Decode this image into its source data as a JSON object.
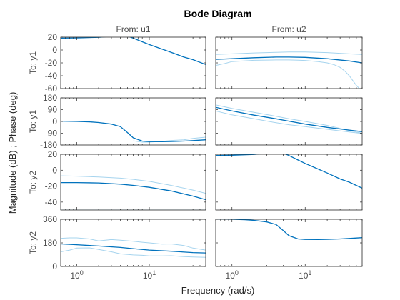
{
  "chart_data": {
    "type": "line",
    "title": "Bode Diagram",
    "xlabel": "Frequency  (rad/s)",
    "ylabel": "Magnitude (dB) ; Phase (deg)",
    "x_scale": "log",
    "xlim": [
      0.6,
      60
    ],
    "x_ticks": [
      1,
      10
    ],
    "x_tick_labels": [
      [
        "10",
        "0"
      ],
      [
        "10",
        "1"
      ]
    ],
    "col_labels": [
      "From: u1",
      "From: u2"
    ],
    "row_labels": [
      "To: y1",
      "To: y1",
      "To: y2",
      "To: y2"
    ],
    "row_kind": [
      "magnitude",
      "phase",
      "magnitude",
      "phase"
    ],
    "row_ylims": [
      [
        -60,
        20
      ],
      [
        -180,
        180
      ],
      [
        -50,
        20
      ],
      [
        0,
        360
      ]
    ],
    "row_yticks": [
      [
        20,
        0,
        -20,
        -40,
        -60
      ],
      [
        180,
        90,
        0,
        -90,
        -180
      ],
      [
        20,
        0,
        -20,
        -40
      ],
      [
        360,
        180,
        0
      ]
    ],
    "colors": {
      "nominal": "#0072bd",
      "bound": "#a6d4ee",
      "axis": "#262626",
      "tick_label": "#4d4d4d"
    },
    "panels": [
      {
        "row": 0,
        "col": 0,
        "series": [
          {
            "kind": "nominal",
            "x": [
              0.6,
              1,
              2,
              3,
              4,
              5,
              6,
              8,
              10,
              15,
              20,
              30,
              40,
              60
            ],
            "y": [
              18.5,
              18.8,
              19.8,
              21.3,
              22.2,
              21.5,
              18.5,
              12.8,
              8.5,
              1.5,
              -3.5,
              -11,
              -15,
              -22.5
            ]
          }
        ]
      },
      {
        "row": 0,
        "col": 1,
        "series": [
          {
            "kind": "bound",
            "x": [
              0.6,
              1,
              2,
              4,
              6,
              10,
              20,
              40,
              60
            ],
            "y": [
              -7,
              -6,
              -4.5,
              -3.5,
              -3,
              -3,
              -4,
              -6,
              -7
            ]
          },
          {
            "kind": "bound",
            "x": [
              0.6,
              0.8,
              1,
              2,
              4,
              6,
              8,
              10,
              15,
              20,
              25,
              30,
              35,
              40,
              45,
              50,
              55,
              60
            ],
            "y": [
              -24,
              -21,
              -18,
              -16,
              -15.5,
              -15.5,
              -15.8,
              -16.2,
              -18,
              -20,
              -23,
              -27,
              -33,
              -40,
              -48,
              -55,
              -60,
              -62
            ]
          },
          {
            "kind": "nominal",
            "x": [
              0.6,
              1,
              2,
              4,
              6,
              10,
              20,
              40,
              60
            ],
            "y": [
              -14.5,
              -13.5,
              -12,
              -11,
              -11,
              -11.5,
              -13.5,
              -17,
              -20
            ]
          }
        ]
      },
      {
        "row": 1,
        "col": 0,
        "series": [
          {
            "kind": "bound",
            "x": [
              6,
              8,
              10,
              15,
              20,
              30,
              40,
              60
            ],
            "y": [
              -148,
              -158,
              -158,
              -152,
              -145,
              -140,
              -130,
              -120
            ]
          },
          {
            "kind": "nominal",
            "x": [
              0.6,
              1,
              1.5,
              2,
              3,
              4,
              5,
              6,
              8,
              10,
              15,
              20,
              30,
              40,
              60
            ],
            "y": [
              2,
              0,
              -3,
              -8,
              -20,
              -40,
              -85,
              -125,
              -150,
              -154,
              -155,
              -153,
              -150,
              -146,
              -140
            ]
          }
        ]
      },
      {
        "row": 1,
        "col": 1,
        "series": [
          {
            "kind": "bound",
            "x": [
              0.6,
              1,
              2,
              4,
              6,
              10,
              20,
              40,
              60
            ],
            "y": [
              126,
              100,
              70,
              40,
              20,
              0,
              -30,
              -70,
              -90
            ]
          },
          {
            "kind": "bound",
            "x": [
              0.6,
              1,
              2,
              4,
              6,
              10,
              20,
              40,
              60
            ],
            "y": [
              80,
              50,
              20,
              -10,
              -25,
              -40,
              -60,
              -80,
              -92
            ]
          },
          {
            "kind": "nominal",
            "x": [
              0.6,
              1,
              2,
              4,
              6,
              10,
              20,
              40,
              60
            ],
            "y": [
              108,
              80,
              48,
              20,
              2,
              -20,
              -45,
              -66,
              -78
            ]
          }
        ]
      },
      {
        "row": 2,
        "col": 0,
        "series": [
          {
            "kind": "bound",
            "x": [
              0.6,
              1,
              2,
              4,
              6,
              10,
              20,
              40,
              60
            ],
            "y": [
              -7,
              -7.5,
              -8.5,
              -10,
              -11.5,
              -14,
              -19,
              -25,
              -29
            ]
          },
          {
            "kind": "bound",
            "x": [
              0.6,
              1,
              2,
              4,
              6,
              10,
              20,
              40,
              60
            ],
            "y": [
              -50,
              -50,
              -50,
              -50,
              -50,
              -50,
              -50,
              -50,
              -50
            ]
          },
          {
            "kind": "nominal",
            "x": [
              0.6,
              1,
              2,
              4,
              6,
              10,
              20,
              40,
              60
            ],
            "y": [
              -15.5,
              -15.5,
              -16,
              -17.5,
              -19,
              -21.5,
              -26,
              -32.5,
              -37
            ]
          }
        ]
      },
      {
        "row": 2,
        "col": 1,
        "series": [
          {
            "kind": "nominal",
            "x": [
              0.6,
              1,
              2,
              3,
              4,
              5,
              6,
              8,
              10,
              15,
              20,
              30,
              40,
              60
            ],
            "y": [
              18.5,
              18.8,
              19.8,
              21.3,
              22.2,
              21.5,
              18.5,
              12.8,
              8.5,
              1.5,
              -3.5,
              -11,
              -15,
              -22.5
            ]
          }
        ]
      },
      {
        "row": 3,
        "col": 0,
        "series": [
          {
            "kind": "bound",
            "x": [
              0.6,
              0.8,
              1,
              1.5,
              2,
              3,
              4,
              6,
              8,
              10,
              15,
              20,
              30,
              40,
              60
            ],
            "y": [
              215,
              218,
              218,
              210,
              195,
              205,
              200,
              192,
              185,
              180,
              170,
              172,
              160,
              140,
              125
            ]
          },
          {
            "kind": "bound",
            "x": [
              0.6,
              0.8,
              1,
              1.5,
              2,
              3,
              4,
              6,
              8,
              10,
              15,
              20,
              30,
              40,
              60
            ],
            "y": [
              112,
              125,
              140,
              142,
              130,
              112,
              96,
              88,
              85,
              80,
              80,
              82,
              75,
              72,
              70
            ]
          },
          {
            "kind": "nominal",
            "x": [
              0.6,
              1,
              2,
              4,
              6,
              10,
              20,
              40,
              60
            ],
            "y": [
              172,
              166,
              156,
              145,
              136,
              125,
              116,
              106,
              103
            ]
          }
        ]
      },
      {
        "row": 3,
        "col": 1,
        "series": [
          {
            "kind": "nominal",
            "x": [
              0.6,
              1,
              1.5,
              2,
              3,
              4,
              5,
              6,
              8,
              10,
              15,
              20,
              30,
              40,
              60
            ],
            "y": [
              362,
              360,
              357,
              352,
              340,
              320,
              275,
              235,
              210,
              206,
              205,
              207,
              210,
              214,
              220
            ]
          }
        ]
      }
    ]
  }
}
